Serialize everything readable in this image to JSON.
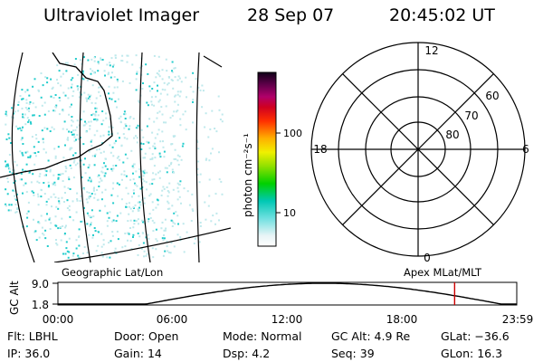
{
  "header": {
    "instrument": "Ultraviolet Imager",
    "date": "28 Sep 07",
    "time": "20:45:02 UT"
  },
  "colorbar": {
    "unit_label": "photon cm⁻²s⁻¹",
    "ticks": [
      {
        "label": "100",
        "value": 100
      },
      {
        "label": "10",
        "value": 10
      }
    ]
  },
  "polar_plot": {
    "mlt_labels": {
      "top": "12",
      "left": "18",
      "right": "6",
      "bottom": "0"
    },
    "lat_labels": [
      "60",
      "70",
      "80"
    ]
  },
  "orbit_plot": {
    "left_title": "Geographic Lat/Lon",
    "right_title": "Apex MLat/MLT",
    "y_axis_label": "GC Alt",
    "y_ticks": [
      "9.0",
      "1.8"
    ],
    "x_ticks": [
      "00:00",
      "06:00",
      "12:00",
      "18:00",
      "23:59"
    ],
    "current_time_marker_hours": 20.75,
    "marker_color": "#cc0000"
  },
  "footer": {
    "row1": [
      {
        "label": "Flt:",
        "value": "LBHL"
      },
      {
        "label": "Door:",
        "value": "Open"
      },
      {
        "label": "Mode:",
        "value": "Normal"
      },
      {
        "label": "GC Alt:",
        "value": "4.9 Re"
      },
      {
        "label": "GLat:",
        "value": "−36.6"
      }
    ],
    "row2": [
      {
        "label": "IP:",
        "value": "36.0"
      },
      {
        "label": "Gain:",
        "value": "14"
      },
      {
        "label": "Dsp:",
        "value": "4.2"
      },
      {
        "label": "Seq:",
        "value": "39"
      },
      {
        "label": "GLon:",
        "value": "16.3"
      }
    ]
  },
  "colors": {
    "emission_cyan": "#22cccc",
    "emission_pale": "#bfe9ec",
    "marker_red": "#cc0000"
  }
}
